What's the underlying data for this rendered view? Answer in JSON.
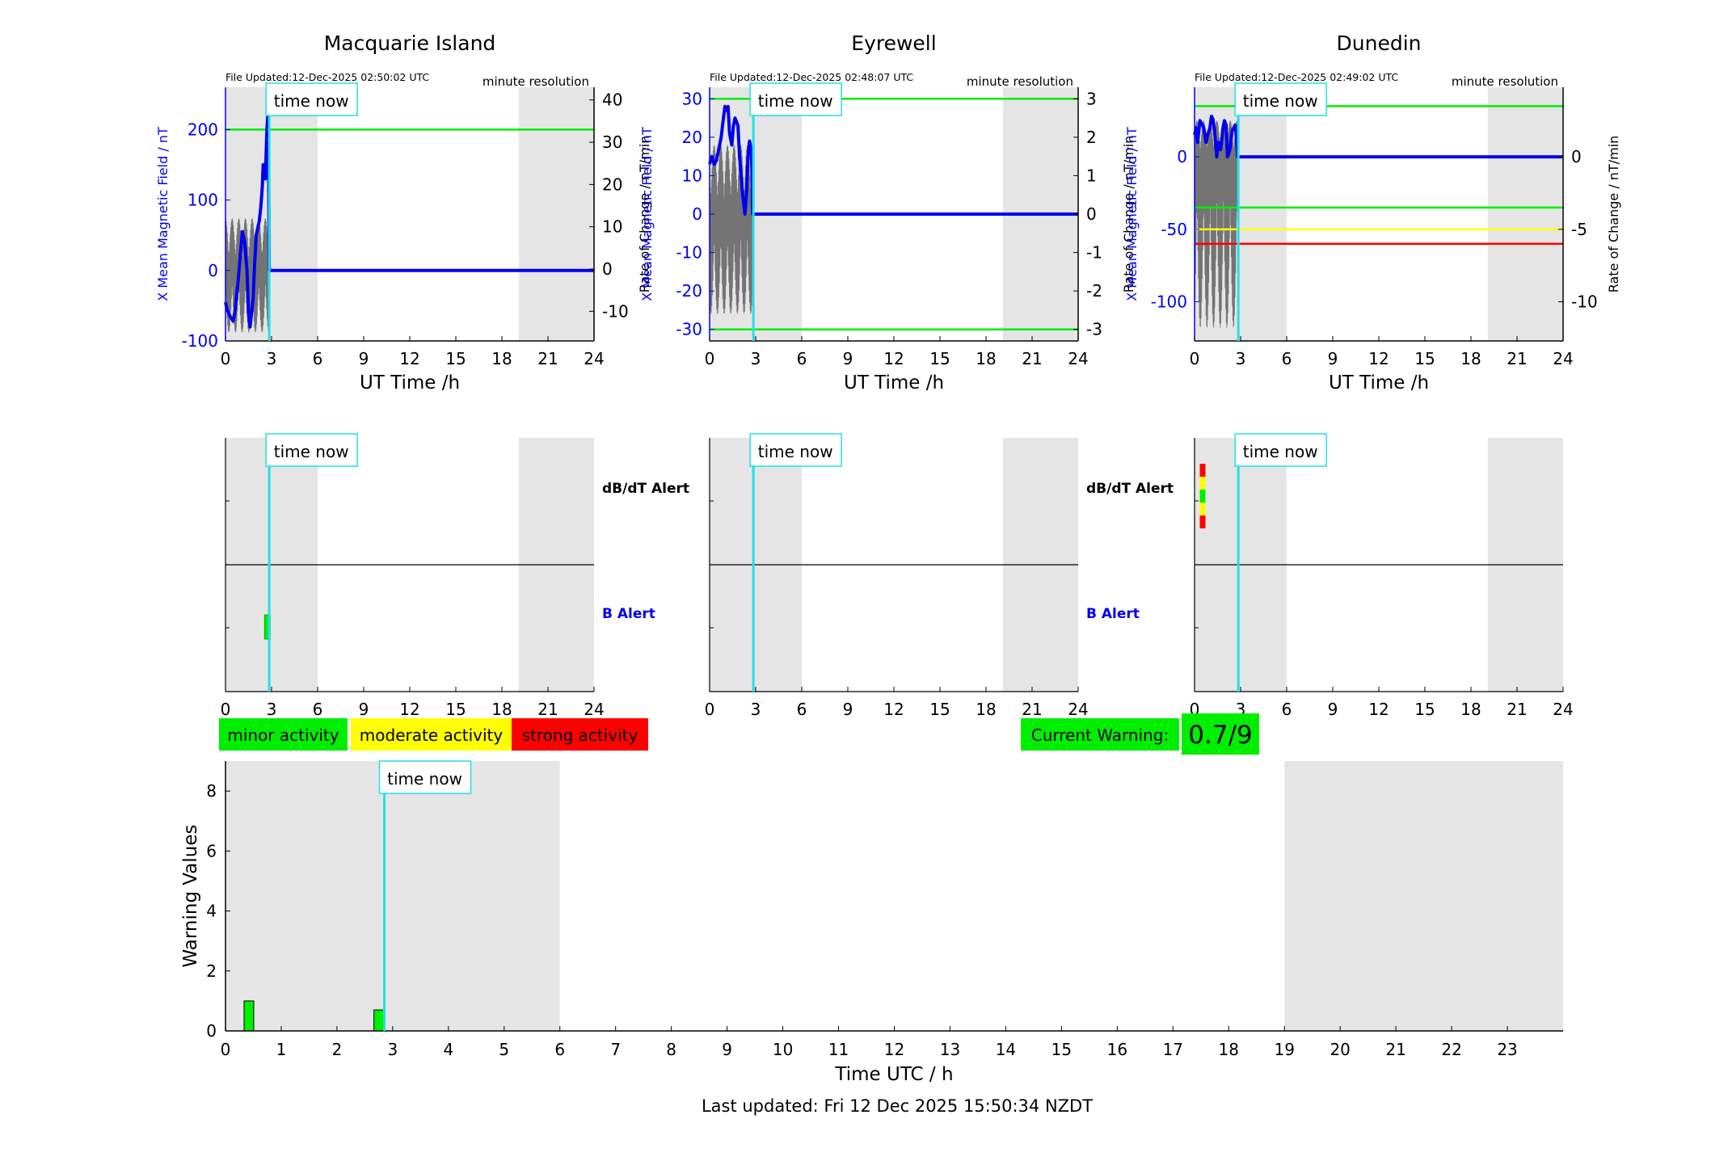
{
  "stations": [
    {
      "title": "Macquarie Island",
      "file_updated": "File Updated:12-Dec-2025 02:50:02 UTC",
      "resolution": "minute resolution",
      "time_now_label": "time now",
      "ylabel_left": "X Mean Magnetic Field / nT",
      "ylabel_right": "Rate of Change / nT/min",
      "xlabel": "UT Time /h",
      "alert_db_label": "dB/dT Alert",
      "alert_b_label": "B Alert"
    },
    {
      "title": "Eyrewell",
      "file_updated": "File Updated:12-Dec-2025 02:48:07 UTC",
      "resolution": "minute resolution",
      "time_now_label": "time now",
      "ylabel_left": "X Mean Magnetic Field / nT",
      "ylabel_right": "Rate of Change / nT/min",
      "xlabel": "UT Time /h",
      "alert_db_label": "dB/dT Alert",
      "alert_b_label": "B Alert"
    },
    {
      "title": "Dunedin",
      "file_updated": "File Updated:12-Dec-2025 02:49:02 UTC",
      "resolution": "minute resolution",
      "time_now_label": "time now",
      "ylabel_left": "X Mean Magnetic Field / nT",
      "ylabel_right": "Rate of Change / nT/min",
      "xlabel": "UT Time /h",
      "alert_db_label": "",
      "alert_b_label": ""
    }
  ],
  "legend": {
    "minor": "minor activity",
    "moderate": "moderate activity",
    "strong": "strong activity"
  },
  "current_warning": {
    "label": "Current Warning:",
    "value": "0.7/9"
  },
  "bottom": {
    "time_now_label": "time now",
    "ylabel": "Warning Values",
    "xlabel": "Time UTC / h"
  },
  "last_updated": "Last updated: Fri 12 Dec 2025 15:50:34 NZDT",
  "colors": {
    "field": "#0000ee",
    "rate": "#444444",
    "now_line": "#22e0e8",
    "night": "#e5e5e5",
    "green": "#00ee00",
    "yellow": "#ffff00",
    "red": "#ff0000"
  },
  "chart_data": [
    {
      "type": "line",
      "title": "Macquarie Island",
      "xlabel": "UT Time /h",
      "ylabel": "X Mean Magnetic Field / nT",
      "y2label": "Rate of Change / nT/min",
      "xlim": [
        0,
        24
      ],
      "ylim": [
        -100,
        260
      ],
      "y2lim": [
        -17,
        43
      ],
      "xticks": [
        0,
        3,
        6,
        9,
        12,
        15,
        18,
        21,
        24
      ],
      "yticks": [
        -100,
        0,
        100,
        200
      ],
      "y2ticks": [
        -10,
        0,
        10,
        20,
        30,
        40
      ],
      "time_now": 2.85,
      "night_spans": [
        [
          0,
          6
        ],
        [
          19.1,
          24
        ]
      ],
      "field_series": {
        "x": [
          0,
          0.1,
          0.3,
          0.5,
          0.6,
          0.8,
          1.0,
          1.1,
          1.25,
          1.4,
          1.5,
          1.6,
          1.8,
          1.9,
          2.0,
          2.1,
          2.2,
          2.3,
          2.4,
          2.45,
          2.5,
          2.55,
          2.6,
          2.65,
          2.7,
          2.75,
          2.8,
          2.85,
          3,
          24
        ],
        "y": [
          -45,
          -55,
          -65,
          -72,
          -60,
          -20,
          30,
          55,
          40,
          0,
          -60,
          -80,
          -40,
          10,
          50,
          60,
          70,
          90,
          120,
          150,
          140,
          150,
          130,
          170,
          200,
          220,
          210,
          0,
          0,
          0
        ]
      },
      "rate_band": {
        "x_range": [
          0,
          2.85
        ],
        "ymin": -15,
        "ymax": 12
      },
      "thresholds": [
        {
          "y": 200,
          "color": "green"
        }
      ]
    },
    {
      "type": "line",
      "title": "Eyrewell",
      "xlabel": "UT Time /h",
      "ylabel": "X Mean Magnetic Field / nT",
      "y2label": "Rate of Change / nT/min",
      "xlim": [
        0,
        24
      ],
      "ylim": [
        -33,
        33
      ],
      "y2lim": [
        -3.3,
        3.3
      ],
      "xticks": [
        0,
        3,
        6,
        9,
        12,
        15,
        18,
        21,
        24
      ],
      "yticks": [
        -30,
        -20,
        -10,
        0,
        10,
        20,
        30
      ],
      "y2ticks": [
        -3,
        -2,
        -1,
        0,
        1,
        2,
        3
      ],
      "time_now": 2.85,
      "night_spans": [
        [
          0,
          6
        ],
        [
          19.1,
          24
        ]
      ],
      "field_series": {
        "x": [
          0,
          0.15,
          0.3,
          0.45,
          0.6,
          0.75,
          0.9,
          1.0,
          1.1,
          1.2,
          1.3,
          1.45,
          1.55,
          1.65,
          1.75,
          1.85,
          1.95,
          2.05,
          2.15,
          2.3,
          2.4,
          2.5,
          2.6,
          2.7,
          2.75,
          2.8,
          3,
          24
        ],
        "y": [
          13,
          15,
          13,
          14,
          17,
          20,
          25,
          28,
          27,
          28,
          21,
          18,
          23,
          25,
          24,
          23,
          15,
          10,
          5,
          0,
          5,
          15,
          19,
          17,
          12,
          0,
          0,
          0
        ]
      },
      "rate_band": {
        "x_range": [
          0,
          2.85
        ],
        "ymin": -2.6,
        "ymax": 1.8
      },
      "thresholds": [
        {
          "y": 30,
          "color": "green"
        },
        {
          "y": -30,
          "color": "green"
        }
      ]
    },
    {
      "type": "line",
      "title": "Dunedin",
      "xlabel": "UT Time /h",
      "ylabel": "X Mean Magnetic Field / nT",
      "y2label": "Rate of Change / nT/min",
      "xlim": [
        0,
        24
      ],
      "ylim": [
        -127,
        48
      ],
      "y2lim": [
        -12.7,
        4.8
      ],
      "xticks": [
        0,
        3,
        6,
        9,
        12,
        15,
        18,
        21,
        24
      ],
      "yticks": [
        -100,
        -50,
        0
      ],
      "y2ticks": [
        -10,
        -5,
        0
      ],
      "time_now": 2.85,
      "night_spans": [
        [
          0,
          6
        ],
        [
          19.1,
          24
        ]
      ],
      "field_series": {
        "x": [
          0,
          0.1,
          0.2,
          0.35,
          0.5,
          0.6,
          0.75,
          0.85,
          1.0,
          1.1,
          1.2,
          1.3,
          1.45,
          1.55,
          1.7,
          1.85,
          1.95,
          2.05,
          2.15,
          2.3,
          2.45,
          2.55,
          2.65,
          2.75,
          2.8,
          2.85,
          3,
          24
        ],
        "y": [
          15,
          20,
          10,
          25,
          22,
          20,
          10,
          15,
          20,
          28,
          26,
          18,
          0,
          10,
          5,
          20,
          25,
          22,
          0,
          5,
          18,
          20,
          22,
          10,
          0,
          0,
          0,
          0
        ]
      },
      "rate_band": {
        "x_range": [
          0,
          2.85
        ],
        "ymin": -11.8,
        "ymax": 2.5
      },
      "thresholds": [
        {
          "y": 35,
          "color": "green"
        },
        {
          "y": -35,
          "color": "green"
        },
        {
          "y": -50,
          "color": "yellow"
        },
        {
          "y": -60,
          "color": "red"
        }
      ]
    },
    {
      "type": "bar",
      "title": "",
      "xlabel": "Time UTC / h",
      "ylabel": "Warning Values",
      "xlim": [
        0,
        24
      ],
      "ylim": [
        0,
        9
      ],
      "xticks": [
        0,
        1,
        2,
        3,
        4,
        5,
        6,
        7,
        8,
        9,
        10,
        11,
        12,
        13,
        14,
        15,
        16,
        17,
        18,
        19,
        20,
        21,
        22,
        23
      ],
      "yticks": [
        0,
        2,
        4,
        6,
        8
      ],
      "time_now": 2.85,
      "night_spans": [
        [
          0,
          6
        ],
        [
          19,
          24
        ]
      ],
      "bars": [
        {
          "x": 0.42,
          "value": 1.0,
          "color": "green"
        },
        {
          "x": 2.75,
          "value": 0.7,
          "color": "green"
        }
      ]
    }
  ],
  "alerts": [
    {
      "station": "Macquarie Island",
      "db_marks": [],
      "b_marks": [
        {
          "x": 2.7,
          "level": "green"
        }
      ]
    },
    {
      "station": "Eyrewell",
      "db_marks": [],
      "b_marks": []
    },
    {
      "station": "Dunedin",
      "db_marks": [
        {
          "x": 0.5,
          "level": "red"
        },
        {
          "x": 0.5,
          "level": "yellow"
        },
        {
          "x": 0.5,
          "level": "green"
        },
        {
          "x": 0.5,
          "level": "yellow"
        },
        {
          "x": 0.5,
          "level": "red"
        }
      ],
      "b_marks": []
    }
  ]
}
